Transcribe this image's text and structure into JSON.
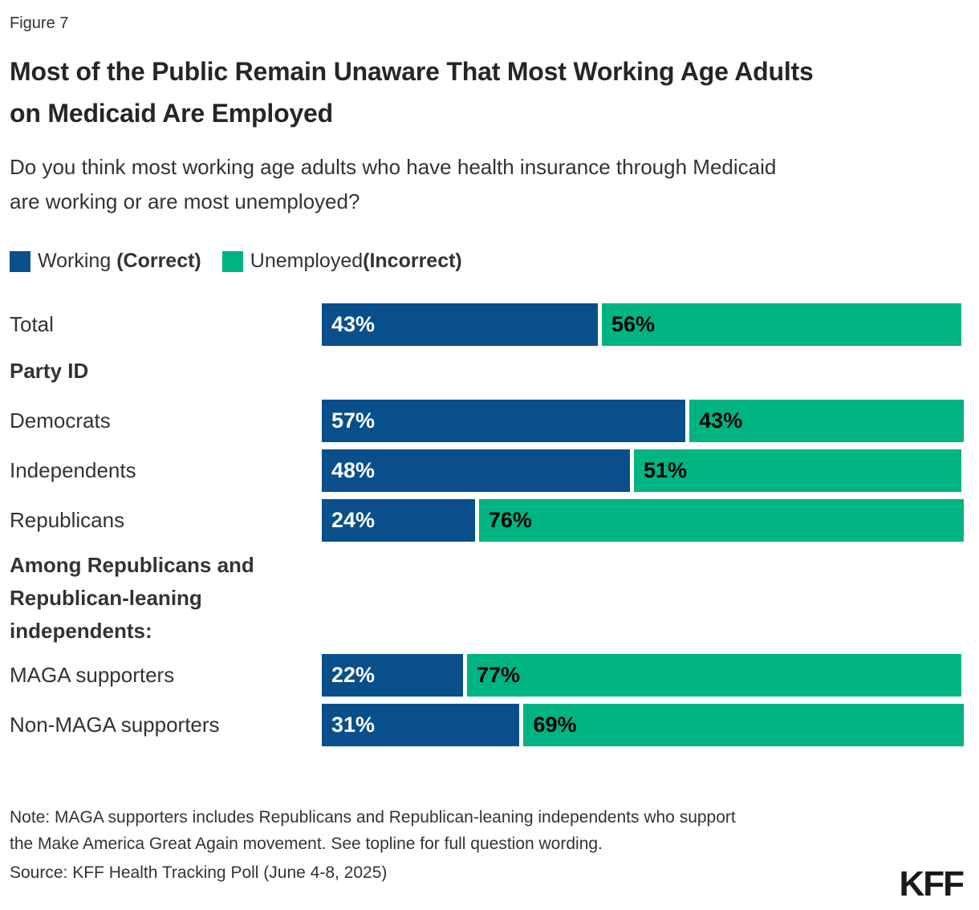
{
  "figure_label": "Figure 7",
  "title": "Most of the Public Remain Unaware That Most Working Age Adults on Medicaid Are Employed",
  "subtitle": "Do you think most working age adults who have health insurance through Medicaid are working or are most unemployed?",
  "colors": {
    "working_blue": "#094F8B",
    "unemployed_green": "#00B383"
  },
  "legend": {
    "working": {
      "label": "Working ",
      "qualifier": "(Correct)"
    },
    "unemployed": {
      "label": "Unemployed",
      "qualifier": "(Incorrect)"
    }
  },
  "section_headers": {
    "party": "Party ID",
    "among": "Among Republicans and Republican-leaning independents:"
  },
  "rows": [
    {
      "label": "Total",
      "working": 43,
      "working_label": "43%",
      "unemployed": 56,
      "unemployed_label": "56%"
    },
    {
      "label": "Democrats",
      "working": 57,
      "working_label": "57%",
      "unemployed": 43,
      "unemployed_label": "43%"
    },
    {
      "label": "Independents",
      "working": 48,
      "working_label": "48%",
      "unemployed": 51,
      "unemployed_label": "51%"
    },
    {
      "label": "Republicans",
      "working": 24,
      "working_label": "24%",
      "unemployed": 76,
      "unemployed_label": "76%"
    },
    {
      "label": "MAGA supporters",
      "working": 22,
      "working_label": "22%",
      "unemployed": 77,
      "unemployed_label": "77%"
    },
    {
      "label": "Non-MAGA supporters",
      "working": 31,
      "working_label": "31%",
      "unemployed": 69,
      "unemployed_label": "69%"
    }
  ],
  "chart_data": {
    "type": "bar",
    "orientation": "horizontal",
    "stacked": true,
    "unit": "percent",
    "title": "Most of the Public Remain Unaware That Most Working Age Adults on Medicaid Are Employed",
    "subtitle": "Do you think most working age adults who have health insurance through Medicaid are working or are most unemployed?",
    "categories": [
      "Total",
      "Democrats",
      "Independents",
      "Republicans",
      "MAGA supporters",
      "Non-MAGA supporters"
    ],
    "category_sections": [
      {
        "header": "Party ID",
        "categories": [
          "Democrats",
          "Independents",
          "Republicans"
        ]
      },
      {
        "header": "Among Republicans and Republican-leaning independents:",
        "categories": [
          "MAGA supporters",
          "Non-MAGA supporters"
        ]
      }
    ],
    "series": [
      {
        "name": "Working (Correct)",
        "color": "#094F8B",
        "values": [
          43,
          57,
          48,
          24,
          22,
          31
        ]
      },
      {
        "name": "Unemployed(Incorrect)",
        "color": "#00B383",
        "values": [
          56,
          43,
          51,
          76,
          77,
          69
        ]
      }
    ],
    "xlim": [
      0,
      100
    ],
    "grid": false,
    "legend_position": "top",
    "value_labels": "inside-left"
  },
  "note": "Note: MAGA supporters includes Republicans and Republican-leaning independents who support the Make America Great Again movement. See topline for full question wording.",
  "source": "Source: KFF Health Tracking Poll (June 4-8, 2025)",
  "logo_text": "KFF"
}
